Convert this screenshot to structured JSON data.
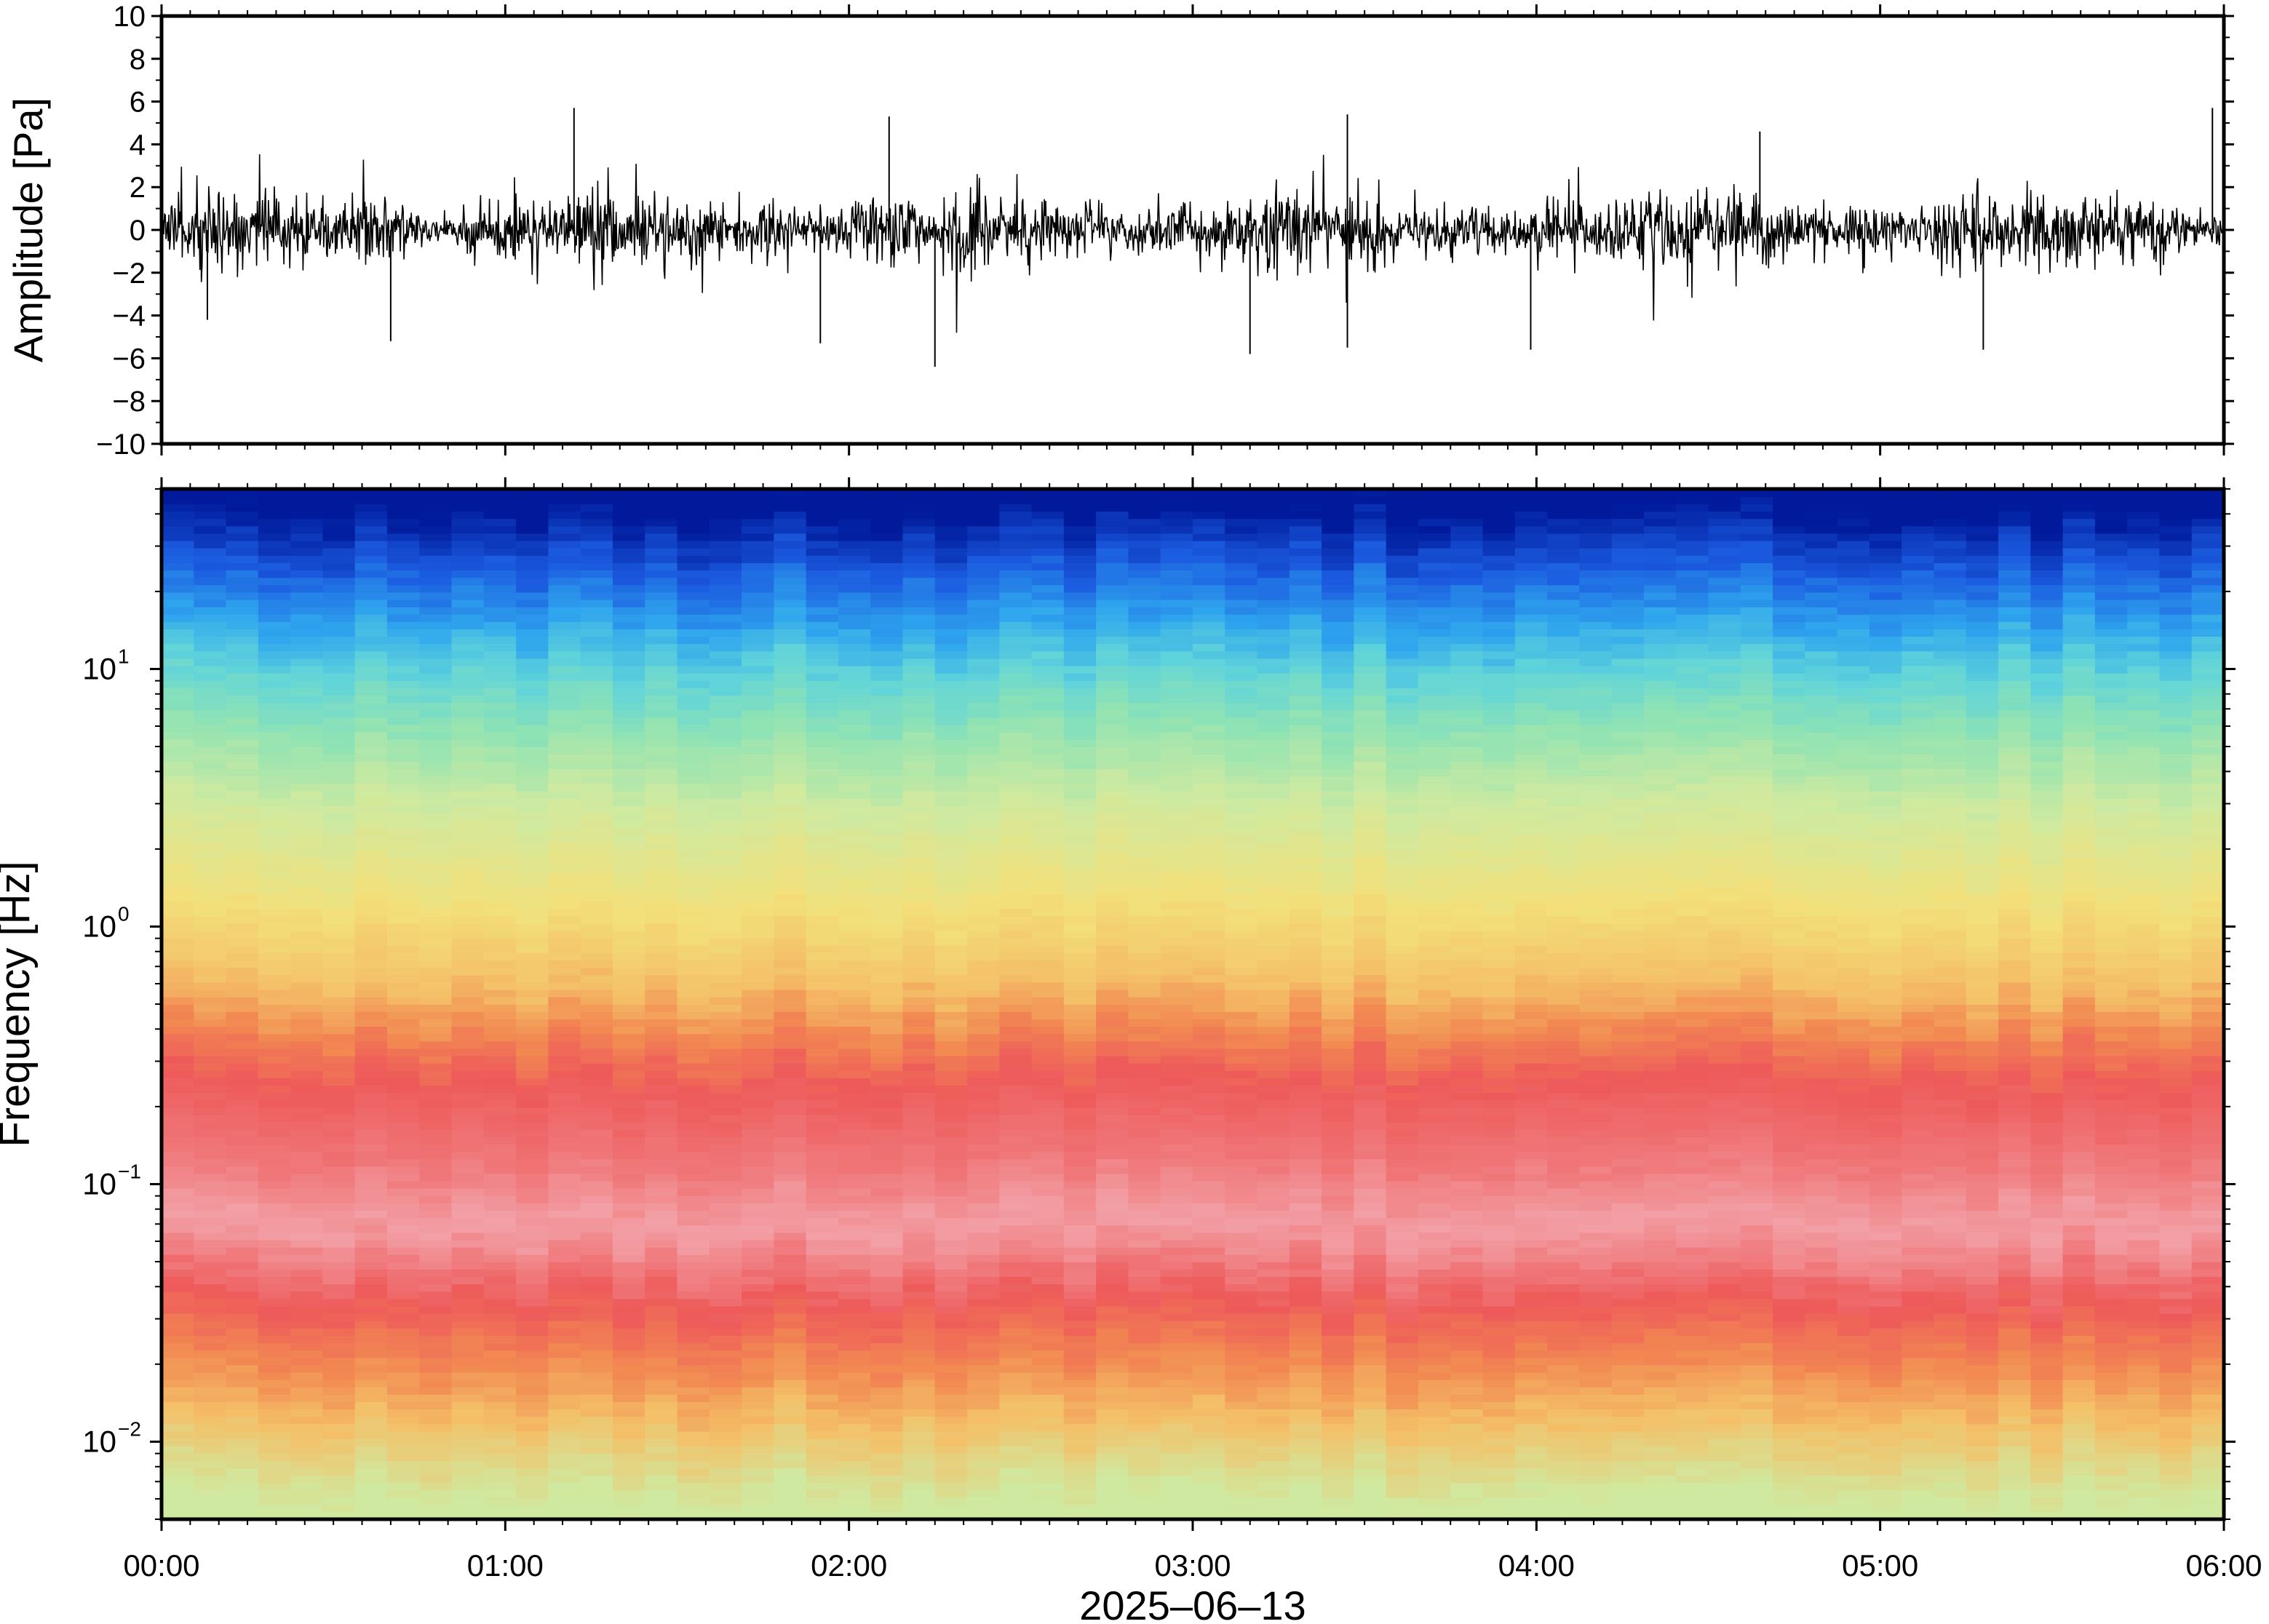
{
  "chart_data": [
    {
      "type": "line",
      "panel": "waveform",
      "title": "",
      "xlabel": "",
      "ylabel": "Amplitude [Pa]",
      "ylim": [
        -10,
        10
      ],
      "y_ticks": [
        -10,
        -8,
        -6,
        -4,
        -2,
        0,
        2,
        4,
        6,
        8,
        10
      ],
      "y_tick_labels": [
        "−10",
        "−8",
        "−6",
        "−4",
        "−2",
        "0",
        "2",
        "4",
        "6",
        "8",
        "10"
      ],
      "xlim": [
        "00:00",
        "06:00"
      ],
      "line_color": "#000000",
      "typical_envelope_pa": 1.5,
      "peaks": [
        {
          "t": "00:08",
          "y": -4.2
        },
        {
          "t": "00:40",
          "y": -5.2
        },
        {
          "t": "01:12",
          "y": 5.7
        },
        {
          "t": "01:55",
          "y": -5.3
        },
        {
          "t": "02:07",
          "y": 5.3
        },
        {
          "t": "02:15",
          "y": -6.4
        },
        {
          "t": "03:10",
          "y": -5.8
        },
        {
          "t": "03:27",
          "y": 5.4
        },
        {
          "t": "03:27",
          "y": -5.5
        },
        {
          "t": "03:59",
          "y": -5.6
        },
        {
          "t": "04:39",
          "y": 4.6
        },
        {
          "t": "05:18",
          "y": -5.6
        },
        {
          "t": "05:58",
          "y": 5.7
        }
      ]
    },
    {
      "type": "heatmap",
      "panel": "spectrogram",
      "title": "",
      "xlabel": "2025‒06‒13",
      "ylabel": "Frequency [Hz]",
      "y_scale": "log",
      "ylim": [
        0.005,
        50
      ],
      "y_ticks": [
        {
          "value": 0.01,
          "base": "10",
          "exp": "−2"
        },
        {
          "value": 0.1,
          "base": "10",
          "exp": "−1"
        },
        {
          "value": 1,
          "base": "10",
          "exp": "0"
        },
        {
          "value": 10,
          "base": "10",
          "exp": "1"
        }
      ],
      "x_ticks": [
        "00:00",
        "01:00",
        "02:00",
        "03:00",
        "04:00",
        "05:00",
        "06:00"
      ],
      "colormap": "spectral (blue high freq → cyan/green → yellow → red/pink low freq)",
      "colors": [
        "#001a9b",
        "#1b5be0",
        "#2fa6ee",
        "#60d4da",
        "#8fe3b4",
        "#cfeaa0",
        "#f3e07a",
        "#f4c068",
        "#f28a52",
        "#ee5a5a",
        "#f2a0a6"
      ],
      "frequency_color_bands": [
        {
          "f": 40,
          "color": "#001a9b"
        },
        {
          "f": 25,
          "color": "#1b5be0"
        },
        {
          "f": 15,
          "color": "#2fa6ee"
        },
        {
          "f": 10,
          "color": "#60d4da"
        },
        {
          "f": 6,
          "color": "#8fe3b4"
        },
        {
          "f": 3,
          "color": "#cfeaa0"
        },
        {
          "f": 1.2,
          "color": "#f3e07a"
        },
        {
          "f": 0.6,
          "color": "#f4c068"
        },
        {
          "f": 0.4,
          "color": "#f28a52"
        },
        {
          "f": 0.25,
          "color": "#ee5a5a"
        },
        {
          "f": 0.12,
          "color": "#f0787a"
        },
        {
          "f": 0.07,
          "color": "#f2a0a6"
        },
        {
          "f": 0.035,
          "color": "#ee5a5a"
        },
        {
          "f": 0.02,
          "color": "#f28a52"
        },
        {
          "f": 0.012,
          "color": "#f4c068"
        },
        {
          "f": 0.006,
          "color": "#cfeaa0"
        }
      ],
      "time_columns": 64
    }
  ]
}
